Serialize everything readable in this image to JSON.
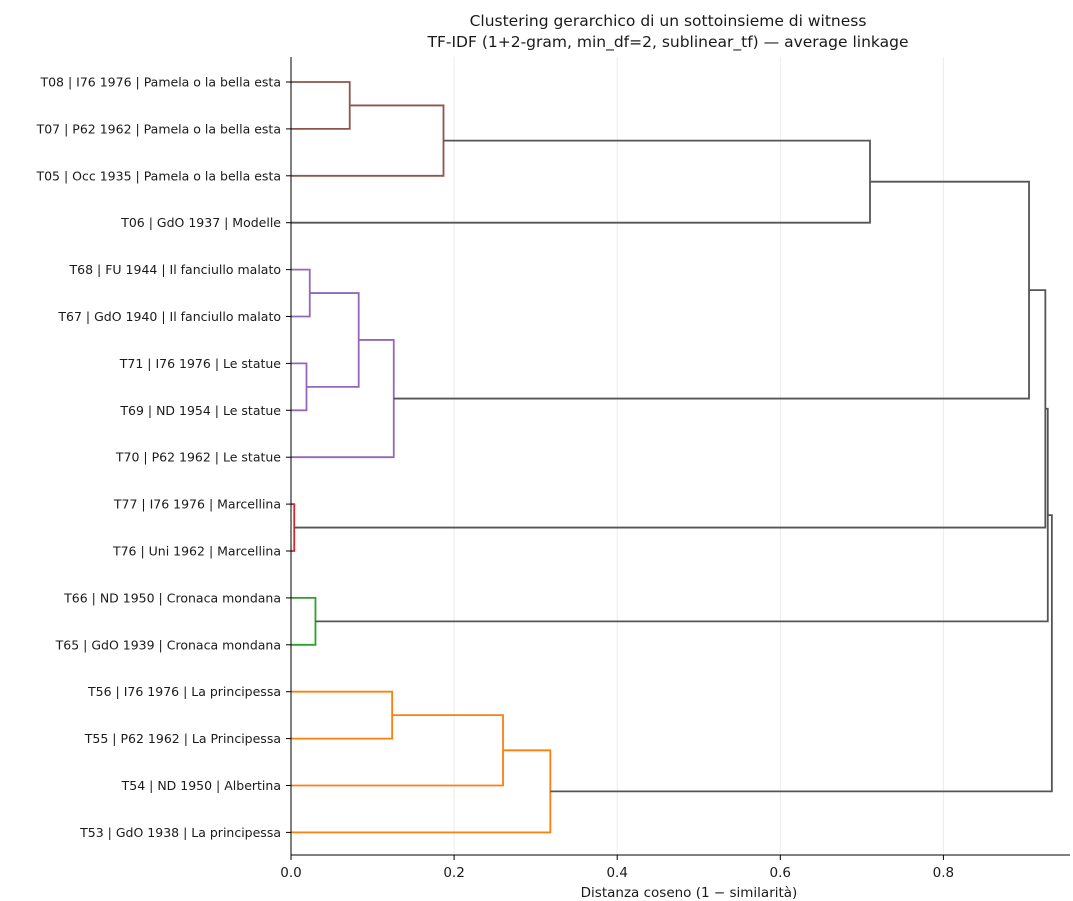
{
  "chart_data": {
    "type": "dendrogram",
    "orientation": "horizontal",
    "title": [
      "Clustering gerarchico di un sottoinsieme di witness",
      "TF-IDF (1+2-gram, min_df=2, sublinear_tf) — average linkage"
    ],
    "xlabel": "Distanza coseno (1 − similarità)",
    "xlim": [
      0,
      0.955
    ],
    "xticks": [
      0,
      0.2,
      0.4,
      0.6,
      0.8
    ],
    "xtick_labels": [
      "0.0",
      "0.2",
      "0.4",
      "0.6",
      "0.8"
    ],
    "grid": "vertical",
    "leaves": [
      "T08 | I76 1976 | Pamela o la bella esta",
      "T07 | P62 1962 | Pamela o la bella esta",
      "T05 | Occ 1935 | Pamela o la bella esta",
      "T06 | GdO 1937 | Modelle",
      "T68 | FU 1944 | Il fanciullo malato",
      "T67 | GdO 1940 | Il fanciullo malato",
      "T71 | I76 1976 | Le statue",
      "T69 | ND 1954 | Le statue",
      "T70 | P62 1962 | Le statue",
      "T77 | I76 1976 | Marcellina",
      "T76 | Uni 1962 | Marcellina",
      "T66 | ND 1950 | Cronaca mondana",
      "T65 | GdO 1939 | Cronaca mondana",
      "T56 | I76 1976 | La principessa",
      "T55 | P62 1962 | La Principessa",
      "T54 | ND 1950 | Albertina",
      "T53 | GdO 1938 | La principessa"
    ],
    "colors": {
      "brown": "#8c564b",
      "purple": "#9467bd",
      "red": "#d62728",
      "green": "#2ca02c",
      "orange": "#ff7f0e",
      "above_threshold": "#555555"
    },
    "merges": [
      {
        "id": "A",
        "children": [
          "T08 | I76 1976 | Pamela o la bella esta",
          "T07 | P62 1962 | Pamela o la bella esta"
        ],
        "distance": 0.072,
        "color": "brown"
      },
      {
        "id": "B",
        "children": [
          "A",
          "T05 | Occ 1935 | Pamela o la bella esta"
        ],
        "distance": 0.187,
        "color": "brown"
      },
      {
        "id": "C",
        "children": [
          "B",
          "T06 | GdO 1937 | Modelle"
        ],
        "distance": 0.71,
        "color": "above_threshold"
      },
      {
        "id": "D",
        "children": [
          "T68 | FU 1944 | Il fanciullo malato",
          "T67 | GdO 1940 | Il fanciullo malato"
        ],
        "distance": 0.023,
        "color": "purple"
      },
      {
        "id": "E",
        "children": [
          "T71 | I76 1976 | Le statue",
          "T69 | ND 1954 | Le statue"
        ],
        "distance": 0.019,
        "color": "purple"
      },
      {
        "id": "F",
        "children": [
          "D",
          "E"
        ],
        "distance": 0.083,
        "color": "purple"
      },
      {
        "id": "G",
        "children": [
          "F",
          "T70 | P62 1962 | Le statue"
        ],
        "distance": 0.126,
        "color": "purple"
      },
      {
        "id": "H",
        "children": [
          "C",
          "G"
        ],
        "distance": 0.905,
        "color": "above_threshold"
      },
      {
        "id": "I",
        "children": [
          "T77 | I76 1976 | Marcellina",
          "T76 | Uni 1962 | Marcellina"
        ],
        "distance": 0.004,
        "color": "red"
      },
      {
        "id": "J",
        "children": [
          "H",
          "I"
        ],
        "distance": 0.925,
        "color": "above_threshold"
      },
      {
        "id": "K",
        "children": [
          "T66 | ND 1950 | Cronaca mondana",
          "T65 | GdO 1939 | Cronaca mondana"
        ],
        "distance": 0.03,
        "color": "green"
      },
      {
        "id": "L",
        "children": [
          "J",
          "K"
        ],
        "distance": 0.928,
        "color": "above_threshold"
      },
      {
        "id": "M",
        "children": [
          "T56 | I76 1976 | La principessa",
          "T55 | P62 1962 | La Principessa"
        ],
        "distance": 0.124,
        "color": "orange"
      },
      {
        "id": "N",
        "children": [
          "M",
          "T54 | ND 1950 | Albertina"
        ],
        "distance": 0.26,
        "color": "orange"
      },
      {
        "id": "O",
        "children": [
          "N",
          "T53 | GdO 1938 | La principessa"
        ],
        "distance": 0.318,
        "color": "orange"
      },
      {
        "id": "P",
        "children": [
          "L",
          "O"
        ],
        "distance": 0.933,
        "color": "above_threshold"
      }
    ]
  }
}
